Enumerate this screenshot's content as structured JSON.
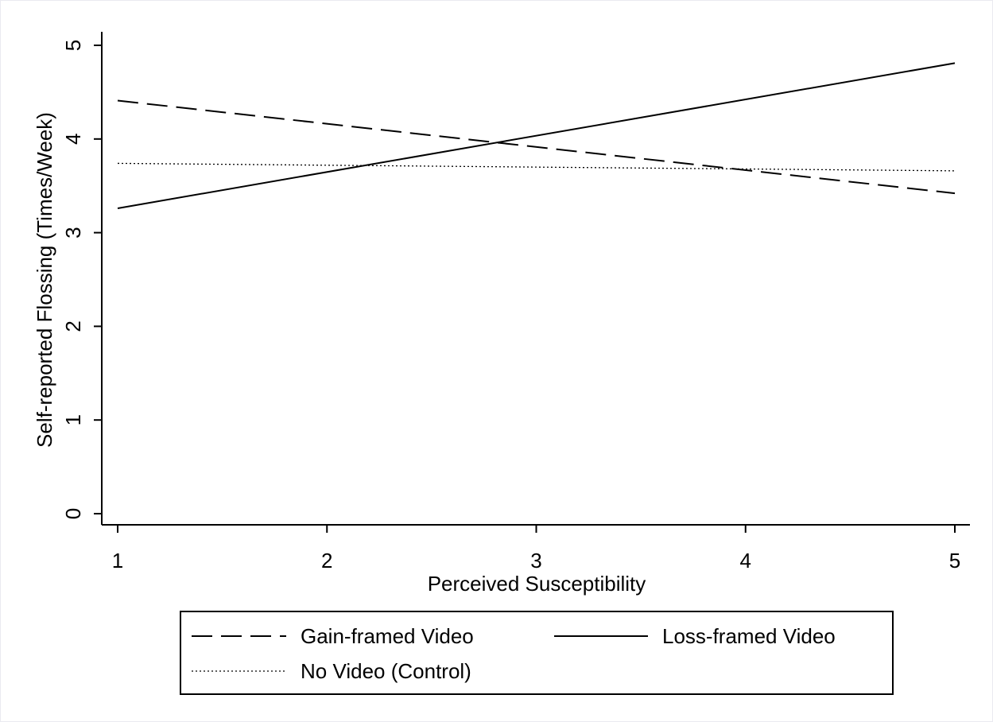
{
  "chart_data": {
    "type": "line",
    "xlabel": "Perceived Susceptibility",
    "ylabel": "Self-reported Flossing (Times/Week)",
    "xlim": [
      1,
      5
    ],
    "ylim": [
      0,
      5
    ],
    "xticks": [
      "1",
      "2",
      "3",
      "4",
      "5"
    ],
    "yticks": [
      "0",
      "1",
      "2",
      "3",
      "4",
      "5"
    ],
    "grid": false,
    "legend_position": "bottom",
    "series": [
      {
        "name": "Gain-framed Video",
        "style": "dashed",
        "x": [
          1,
          5
        ],
        "y": [
          4.41,
          3.42
        ]
      },
      {
        "name": "Loss-framed Video",
        "style": "solid",
        "x": [
          1,
          5
        ],
        "y": [
          3.26,
          4.81
        ]
      },
      {
        "name": "No Video (Control)",
        "style": "dotted",
        "x": [
          1,
          5
        ],
        "y": [
          3.74,
          3.66
        ]
      }
    ]
  },
  "colors": {
    "line": "#000000",
    "background": "#ffffff",
    "frame": "#eaeaf0"
  }
}
